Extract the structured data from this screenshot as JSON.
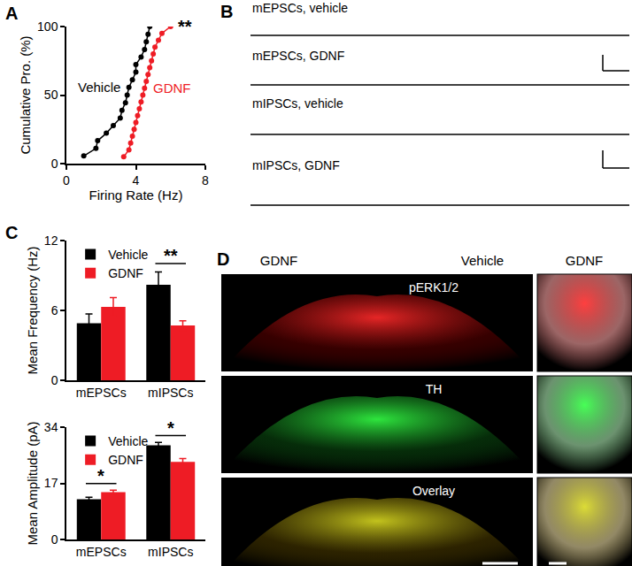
{
  "chart_data": [
    {
      "panel_label": "A",
      "type": "line",
      "x_label": "Firing Rate (Hz)",
      "y_label": "Cumulative Pro. (%)",
      "xlim": [
        0,
        8
      ],
      "xticks": [
        0,
        4,
        8
      ],
      "ylim": [
        0,
        100
      ],
      "yticks": [
        0,
        50,
        100
      ],
      "grid": false,
      "marker": "circle",
      "line_style": "solid",
      "series": [
        {
          "name": "Vehicle",
          "color": "#000000",
          "x": [
            1.0,
            1.7,
            1.8,
            2.3,
            2.7,
            3.1,
            3.2,
            3.4,
            3.5,
            3.6,
            3.8,
            4.0,
            4.0,
            4.3,
            4.5,
            4.6,
            4.7,
            4.8
          ],
          "values": [
            5.6,
            11.1,
            16.7,
            22.2,
            27.8,
            33.3,
            38.9,
            44.4,
            50,
            55.6,
            61.1,
            66.7,
            72.2,
            77.8,
            83.3,
            88.9,
            94.4,
            100
          ]
        },
        {
          "name": "GDNF",
          "color": "#ee1c25",
          "x": [
            3.3,
            3.6,
            3.7,
            3.8,
            3.9,
            4.0,
            4.1,
            4.2,
            4.3,
            4.4,
            4.5,
            4.6,
            4.7,
            4.8,
            4.9,
            5.0,
            5.1,
            5.3,
            5.5,
            6.0
          ],
          "values": [
            5,
            10,
            15,
            20,
            25,
            30,
            35,
            40,
            45,
            50,
            55,
            60,
            65,
            70,
            75,
            80,
            85,
            90,
            95,
            100
          ]
        }
      ],
      "annotations": [
        {
          "series": "GDNF",
          "text": "**"
        }
      ]
    },
    {
      "panel_label": "C",
      "type": "bar",
      "y_label": "Mean Frequency (Hz)",
      "categories": [
        "mEPSCs",
        "mIPSCs"
      ],
      "ylim": [
        0,
        12
      ],
      "yticks": [
        0,
        6,
        12
      ],
      "grid": false,
      "legend": "upper left",
      "series": [
        {
          "name": "Vehicle",
          "color": "#000000",
          "values": [
            4.9,
            8.2
          ],
          "errors": [
            0.8,
            1.1
          ]
        },
        {
          "name": "GDNF",
          "color": "#ee1c25",
          "values": [
            6.3,
            4.7
          ],
          "errors": [
            0.8,
            0.4
          ]
        }
      ],
      "annotations": [
        {
          "category": "mIPSCs",
          "text": "**"
        }
      ]
    },
    {
      "type": "bar",
      "y_label": "Mean Amplitude (pA)",
      "categories": [
        "mEPSCs",
        "mIPSCs"
      ],
      "ylim": [
        0,
        34
      ],
      "yticks": [
        0,
        17,
        34
      ],
      "grid": false,
      "legend": "upper left",
      "series": [
        {
          "name": "Vehicle",
          "color": "#000000",
          "values": [
            12.2,
            28.5
          ],
          "errors": [
            0.6,
            0.9
          ]
        },
        {
          "name": "GDNF",
          "color": "#ee1c25",
          "values": [
            14.3,
            23.5
          ],
          "errors": [
            0.6,
            1.0
          ]
        }
      ],
      "annotations": [
        {
          "category": "mEPSCs",
          "text": "*"
        },
        {
          "category": "mIPSCs",
          "text": "*"
        }
      ]
    }
  ],
  "panel_B": {
    "panel_label": "B",
    "traces": [
      "mEPSCs, vehicle",
      "mEPSCs, GDNF",
      "mIPSCs, vehicle",
      "mIPSCs, GDNF"
    ]
  },
  "panel_D": {
    "panel_label": "D",
    "columns": [
      "GDNF",
      "Vehicle",
      "GDNF"
    ],
    "rows": [
      "pERK1/2",
      "TH",
      "Overlay"
    ]
  }
}
